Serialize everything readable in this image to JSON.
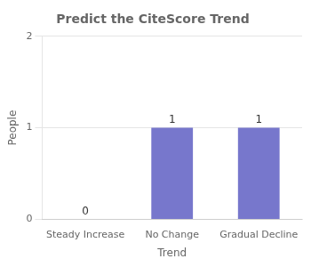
{
  "chart_data": {
    "type": "bar",
    "title": "Predict the CiteScore Trend",
    "categories": [
      "Steady Increase",
      "No Change",
      "Gradual Decline"
    ],
    "values": [
      0,
      1,
      1
    ],
    "color": "#7777cc",
    "xlabel": "Trend",
    "ylabel": "People",
    "ylim": [
      0,
      2
    ],
    "yticks": [
      0,
      1,
      2
    ],
    "grid": true,
    "data_labels": true
  }
}
